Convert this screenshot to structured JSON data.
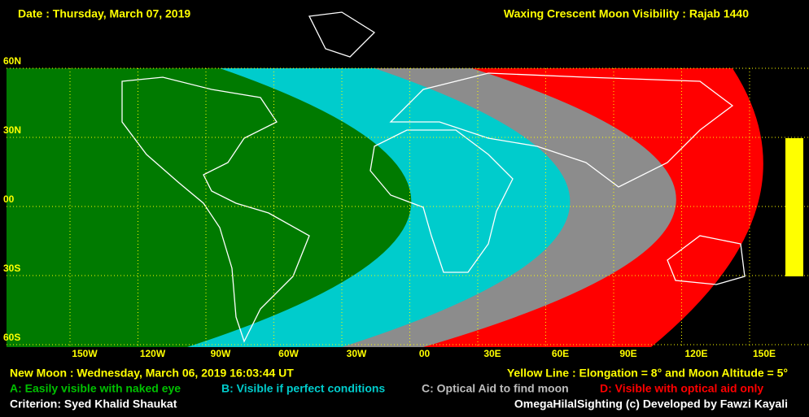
{
  "header": {
    "date": "Date : Thursday, March 07, 2019",
    "title": "Waxing Crescent Moon Visibility : Rajab 1440"
  },
  "map": {
    "latitude_labels": [
      "60N",
      "30N",
      "00",
      "30S",
      "60S"
    ],
    "longitude_labels": [
      "150W",
      "120W",
      "90W",
      "60W",
      "30W",
      "00",
      "30E",
      "60E",
      "90E",
      "120E",
      "150E"
    ]
  },
  "footer": {
    "new_moon": "New Moon : Wednesday, March 06, 2019  16:03:44  UT",
    "yellow_line": "Yellow Line : Elongation = 8° and Moon Altitude = 5°",
    "legend": [
      "A: Easily visible with naked eye",
      "B: Visible if perfect conditions",
      "C: Optical Aid to find moon",
      "D: Visible with optical aid only"
    ],
    "criterion": "Criterion: Syed Khalid Shaukat",
    "credit": "OmegaHilalSighting  (c) Developed by Fawzi Kayali"
  }
}
